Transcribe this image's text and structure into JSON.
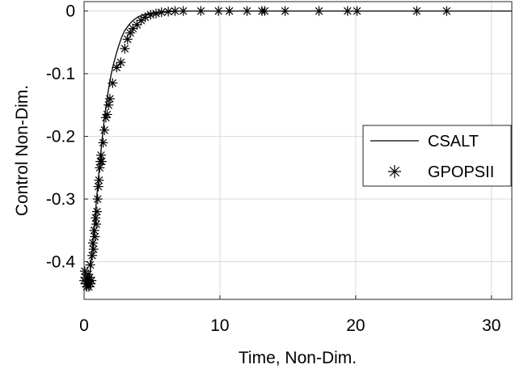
{
  "chart_data": {
    "type": "line",
    "xlabel": "Time, Non-Dim.",
    "ylabel": "Control Non-Dim.",
    "xlim": [
      0,
      31.5
    ],
    "ylim": [
      -0.46,
      0.015
    ],
    "xticks": [
      0,
      10,
      20,
      30
    ],
    "yticks": [
      0,
      -0.1,
      -0.2,
      -0.3,
      -0.4
    ],
    "xtick_labels": [
      "0",
      "10",
      "20",
      "30"
    ],
    "ytick_labels": [
      "0",
      "-0.1",
      "-0.2",
      "-0.3",
      "-0.4"
    ],
    "grid": true,
    "legend_position": "right",
    "series": [
      {
        "name": "CSALT",
        "style": "line",
        "color": "#000000",
        "x": [
          0,
          0.1,
          0.2,
          0.3,
          0.4,
          0.5,
          0.6,
          0.7,
          0.8,
          0.9,
          1.0,
          1.1,
          1.2,
          1.3,
          1.4,
          1.5,
          1.6,
          1.7,
          1.8,
          2.0,
          2.2,
          2.4,
          2.6,
          2.8,
          3.0,
          3.3,
          3.6,
          4.0,
          4.5,
          5.0,
          5.5,
          6.0,
          7.0,
          8.0,
          10.0,
          12.0,
          15.0,
          20.0,
          25.0,
          31.5
        ],
        "y": [
          -0.44,
          -0.44,
          -0.44,
          -0.435,
          -0.425,
          -0.405,
          -0.38,
          -0.355,
          -0.33,
          -0.305,
          -0.28,
          -0.255,
          -0.235,
          -0.21,
          -0.19,
          -0.17,
          -0.155,
          -0.14,
          -0.125,
          -0.1,
          -0.082,
          -0.066,
          -0.052,
          -0.04,
          -0.031,
          -0.022,
          -0.015,
          -0.009,
          -0.005,
          -0.003,
          -0.002,
          -0.001,
          0,
          0,
          0,
          0,
          0,
          0,
          0,
          0
        ]
      },
      {
        "name": "GPOPSII",
        "style": "marker",
        "marker": "asterisk",
        "color": "#000000",
        "x": [
          0.0,
          0.05,
          0.1,
          0.15,
          0.2,
          0.25,
          0.3,
          0.35,
          0.4,
          0.45,
          0.5,
          0.55,
          0.6,
          0.65,
          0.7,
          0.75,
          0.8,
          0.85,
          0.9,
          0.95,
          1.0,
          1.05,
          1.1,
          1.15,
          1.2,
          1.25,
          1.3,
          1.4,
          1.5,
          1.6,
          1.7,
          1.8,
          1.9,
          2.1,
          2.4,
          2.7,
          3.0,
          3.2,
          3.4,
          3.6,
          3.9,
          4.2,
          4.5,
          4.9,
          5.3,
          5.7,
          6.2,
          6.7,
          7.3,
          8.6,
          9.9,
          10.7,
          12.0,
          13.1,
          13.3,
          14.8,
          17.3,
          19.4,
          20.1,
          24.5,
          26.7
        ],
        "y": [
          -0.43,
          -0.415,
          -0.425,
          -0.435,
          -0.44,
          -0.43,
          -0.42,
          -0.44,
          -0.425,
          -0.405,
          -0.435,
          -0.43,
          -0.39,
          -0.37,
          -0.38,
          -0.35,
          -0.36,
          -0.33,
          -0.34,
          -0.32,
          -0.3,
          -0.28,
          -0.27,
          -0.25,
          -0.24,
          -0.23,
          -0.24,
          -0.21,
          -0.19,
          -0.17,
          -0.165,
          -0.15,
          -0.14,
          -0.115,
          -0.09,
          -0.082,
          -0.06,
          -0.045,
          -0.035,
          -0.028,
          -0.022,
          -0.015,
          -0.01,
          -0.006,
          -0.004,
          -0.002,
          -0.001,
          0,
          0,
          0,
          0,
          0,
          0,
          0,
          0,
          0,
          0,
          0,
          0,
          0,
          0
        ]
      }
    ]
  }
}
